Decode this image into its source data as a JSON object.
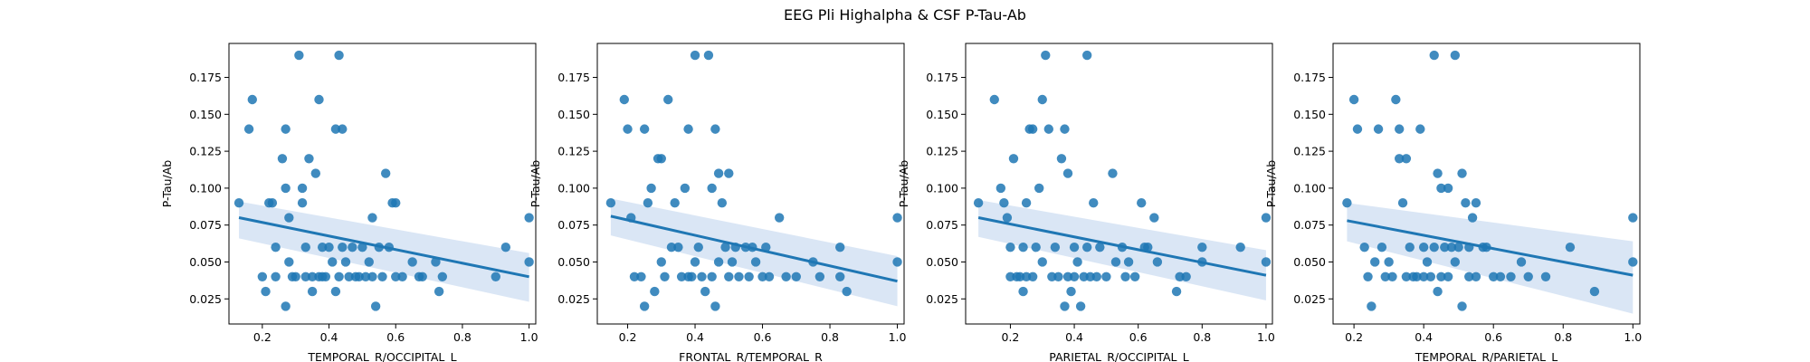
{
  "figure": {
    "suptitle": "EEG Pli Highalpha & CSF P-Tau-Ab"
  },
  "style": {
    "point_color": "#1f77b4",
    "line_color": "#1f77b4",
    "band_color": "#aec7e8"
  },
  "chart_data": [
    {
      "type": "scatter",
      "xlabel": "TEMPORAL_R/OCCIPITAL_L",
      "ylabel": "P-Tau/Ab",
      "xlim": [
        0.1,
        1.02
      ],
      "ylim": [
        0.008,
        0.198
      ],
      "xticks": [
        "0.2",
        "0.4",
        "0.6",
        "0.8",
        "1.0"
      ],
      "yticks": [
        "0.025",
        "0.050",
        "0.075",
        "0.100",
        "0.125",
        "0.150",
        "0.175"
      ],
      "regression": {
        "x": [
          0.13,
          1.0
        ],
        "y": [
          0.08,
          0.04
        ],
        "ci_lower": [
          0.066,
          0.023
        ],
        "ci_upper": [
          0.091,
          0.056
        ]
      },
      "points": [
        [
          0.13,
          0.09
        ],
        [
          0.16,
          0.14
        ],
        [
          0.17,
          0.16
        ],
        [
          0.2,
          0.04
        ],
        [
          0.21,
          0.03
        ],
        [
          0.22,
          0.09
        ],
        [
          0.23,
          0.09
        ],
        [
          0.24,
          0.06
        ],
        [
          0.24,
          0.04
        ],
        [
          0.26,
          0.12
        ],
        [
          0.27,
          0.14
        ],
        [
          0.27,
          0.02
        ],
        [
          0.27,
          0.1
        ],
        [
          0.28,
          0.08
        ],
        [
          0.28,
          0.05
        ],
        [
          0.29,
          0.04
        ],
        [
          0.3,
          0.04
        ],
        [
          0.31,
          0.19
        ],
        [
          0.32,
          0.1
        ],
        [
          0.32,
          0.09
        ],
        [
          0.33,
          0.04
        ],
        [
          0.33,
          0.06
        ],
        [
          0.34,
          0.12
        ],
        [
          0.35,
          0.04
        ],
        [
          0.35,
          0.03
        ],
        [
          0.36,
          0.11
        ],
        [
          0.37,
          0.16
        ],
        [
          0.37,
          0.04
        ],
        [
          0.38,
          0.06
        ],
        [
          0.38,
          0.04
        ],
        [
          0.39,
          0.04
        ],
        [
          0.4,
          0.06
        ],
        [
          0.41,
          0.05
        ],
        [
          0.42,
          0.14
        ],
        [
          0.42,
          0.03
        ],
        [
          0.43,
          0.19
        ],
        [
          0.43,
          0.04
        ],
        [
          0.44,
          0.14
        ],
        [
          0.44,
          0.06
        ],
        [
          0.45,
          0.05
        ],
        [
          0.46,
          0.04
        ],
        [
          0.47,
          0.06
        ],
        [
          0.48,
          0.04
        ],
        [
          0.49,
          0.04
        ],
        [
          0.5,
          0.06
        ],
        [
          0.51,
          0.04
        ],
        [
          0.52,
          0.05
        ],
        [
          0.53,
          0.08
        ],
        [
          0.53,
          0.04
        ],
        [
          0.54,
          0.02
        ],
        [
          0.55,
          0.06
        ],
        [
          0.56,
          0.04
        ],
        [
          0.57,
          0.11
        ],
        [
          0.58,
          0.06
        ],
        [
          0.59,
          0.09
        ],
        [
          0.6,
          0.09
        ],
        [
          0.6,
          0.04
        ],
        [
          0.62,
          0.04
        ],
        [
          0.65,
          0.05
        ],
        [
          0.67,
          0.04
        ],
        [
          0.68,
          0.04
        ],
        [
          0.72,
          0.05
        ],
        [
          0.73,
          0.03
        ],
        [
          0.74,
          0.04
        ],
        [
          0.9,
          0.04
        ],
        [
          0.93,
          0.06
        ],
        [
          1.0,
          0.08
        ],
        [
          1.0,
          0.05
        ]
      ]
    },
    {
      "type": "scatter",
      "xlabel": "FRONTAL_R/TEMPORAL_R",
      "ylabel": "P-Tau/Ab",
      "xlim": [
        0.11,
        1.02
      ],
      "ylim": [
        0.008,
        0.198
      ],
      "xticks": [
        "0.2",
        "0.4",
        "0.6",
        "0.8",
        "1.0"
      ],
      "yticks": [
        "0.025",
        "0.050",
        "0.075",
        "0.100",
        "0.125",
        "0.150",
        "0.175"
      ],
      "regression": {
        "x": [
          0.15,
          1.0
        ],
        "y": [
          0.081,
          0.037
        ],
        "ci_lower": [
          0.068,
          0.02
        ],
        "ci_upper": [
          0.093,
          0.054
        ]
      },
      "points": [
        [
          0.15,
          0.09
        ],
        [
          0.19,
          0.16
        ],
        [
          0.2,
          0.14
        ],
        [
          0.21,
          0.08
        ],
        [
          0.22,
          0.04
        ],
        [
          0.24,
          0.04
        ],
        [
          0.25,
          0.14
        ],
        [
          0.25,
          0.02
        ],
        [
          0.26,
          0.09
        ],
        [
          0.27,
          0.1
        ],
        [
          0.28,
          0.03
        ],
        [
          0.29,
          0.12
        ],
        [
          0.3,
          0.12
        ],
        [
          0.3,
          0.05
        ],
        [
          0.31,
          0.04
        ],
        [
          0.32,
          0.16
        ],
        [
          0.33,
          0.06
        ],
        [
          0.34,
          0.09
        ],
        [
          0.35,
          0.06
        ],
        [
          0.36,
          0.04
        ],
        [
          0.37,
          0.1
        ],
        [
          0.38,
          0.14
        ],
        [
          0.38,
          0.04
        ],
        [
          0.39,
          0.04
        ],
        [
          0.4,
          0.19
        ],
        [
          0.4,
          0.05
        ],
        [
          0.41,
          0.06
        ],
        [
          0.42,
          0.04
        ],
        [
          0.43,
          0.03
        ],
        [
          0.44,
          0.19
        ],
        [
          0.45,
          0.1
        ],
        [
          0.45,
          0.04
        ],
        [
          0.46,
          0.14
        ],
        [
          0.46,
          0.02
        ],
        [
          0.47,
          0.11
        ],
        [
          0.47,
          0.05
        ],
        [
          0.48,
          0.09
        ],
        [
          0.49,
          0.06
        ],
        [
          0.5,
          0.11
        ],
        [
          0.5,
          0.04
        ],
        [
          0.51,
          0.05
        ],
        [
          0.52,
          0.06
        ],
        [
          0.53,
          0.04
        ],
        [
          0.55,
          0.06
        ],
        [
          0.56,
          0.04
        ],
        [
          0.57,
          0.06
        ],
        [
          0.58,
          0.05
        ],
        [
          0.6,
          0.04
        ],
        [
          0.61,
          0.06
        ],
        [
          0.62,
          0.04
        ],
        [
          0.65,
          0.08
        ],
        [
          0.67,
          0.04
        ],
        [
          0.7,
          0.04
        ],
        [
          0.75,
          0.05
        ],
        [
          0.77,
          0.04
        ],
        [
          0.83,
          0.06
        ],
        [
          0.83,
          0.04
        ],
        [
          0.85,
          0.03
        ],
        [
          1.0,
          0.08
        ],
        [
          1.0,
          0.05
        ]
      ]
    },
    {
      "type": "scatter",
      "xlabel": "PARIETAL_R/OCCIPITAL_L",
      "ylabel": "P-Tau/Ab",
      "xlim": [
        0.06,
        1.02
      ],
      "ylim": [
        0.008,
        0.198
      ],
      "xticks": [
        "0.2",
        "0.4",
        "0.6",
        "0.8",
        "1.0"
      ],
      "yticks": [
        "0.025",
        "0.050",
        "0.075",
        "0.100",
        "0.125",
        "0.150",
        "0.175"
      ],
      "regression": {
        "x": [
          0.1,
          1.0
        ],
        "y": [
          0.08,
          0.041
        ],
        "ci_lower": [
          0.067,
          0.024
        ],
        "ci_upper": [
          0.092,
          0.058
        ]
      },
      "points": [
        [
          0.1,
          0.09
        ],
        [
          0.15,
          0.16
        ],
        [
          0.17,
          0.1
        ],
        [
          0.18,
          0.09
        ],
        [
          0.19,
          0.08
        ],
        [
          0.2,
          0.06
        ],
        [
          0.2,
          0.04
        ],
        [
          0.21,
          0.12
        ],
        [
          0.22,
          0.04
        ],
        [
          0.23,
          0.04
        ],
        [
          0.24,
          0.06
        ],
        [
          0.24,
          0.03
        ],
        [
          0.25,
          0.09
        ],
        [
          0.25,
          0.04
        ],
        [
          0.26,
          0.14
        ],
        [
          0.27,
          0.14
        ],
        [
          0.27,
          0.04
        ],
        [
          0.28,
          0.06
        ],
        [
          0.29,
          0.1
        ],
        [
          0.3,
          0.05
        ],
        [
          0.3,
          0.16
        ],
        [
          0.31,
          0.19
        ],
        [
          0.32,
          0.14
        ],
        [
          0.33,
          0.04
        ],
        [
          0.34,
          0.06
        ],
        [
          0.35,
          0.04
        ],
        [
          0.36,
          0.12
        ],
        [
          0.37,
          0.14
        ],
        [
          0.37,
          0.02
        ],
        [
          0.38,
          0.11
        ],
        [
          0.38,
          0.04
        ],
        [
          0.39,
          0.03
        ],
        [
          0.4,
          0.06
        ],
        [
          0.4,
          0.04
        ],
        [
          0.41,
          0.05
        ],
        [
          0.42,
          0.02
        ],
        [
          0.43,
          0.04
        ],
        [
          0.44,
          0.19
        ],
        [
          0.44,
          0.06
        ],
        [
          0.45,
          0.04
        ],
        [
          0.46,
          0.09
        ],
        [
          0.47,
          0.04
        ],
        [
          0.48,
          0.06
        ],
        [
          0.5,
          0.04
        ],
        [
          0.52,
          0.11
        ],
        [
          0.53,
          0.05
        ],
        [
          0.55,
          0.06
        ],
        [
          0.56,
          0.04
        ],
        [
          0.57,
          0.05
        ],
        [
          0.59,
          0.04
        ],
        [
          0.61,
          0.09
        ],
        [
          0.62,
          0.06
        ],
        [
          0.63,
          0.06
        ],
        [
          0.65,
          0.08
        ],
        [
          0.66,
          0.05
        ],
        [
          0.72,
          0.03
        ],
        [
          0.73,
          0.04
        ],
        [
          0.75,
          0.04
        ],
        [
          0.8,
          0.06
        ],
        [
          0.8,
          0.05
        ],
        [
          0.92,
          0.06
        ],
        [
          1.0,
          0.08
        ],
        [
          1.0,
          0.05
        ]
      ]
    },
    {
      "type": "scatter",
      "xlabel": "TEMPORAL_R/PARIETAL_L",
      "ylabel": "P-Tau/Ab",
      "xlim": [
        0.14,
        1.02
      ],
      "ylim": [
        0.008,
        0.198
      ],
      "xticks": [
        "0.2",
        "0.4",
        "0.6",
        "0.8",
        "1.0"
      ],
      "yticks": [
        "0.025",
        "0.050",
        "0.075",
        "0.100",
        "0.125",
        "0.150",
        "0.175"
      ],
      "regression": {
        "x": [
          0.18,
          1.0
        ],
        "y": [
          0.078,
          0.041
        ],
        "ci_lower": [
          0.064,
          0.015
        ],
        "ci_upper": [
          0.09,
          0.064
        ]
      },
      "points": [
        [
          0.18,
          0.09
        ],
        [
          0.2,
          0.16
        ],
        [
          0.21,
          0.14
        ],
        [
          0.23,
          0.06
        ],
        [
          0.24,
          0.04
        ],
        [
          0.25,
          0.02
        ],
        [
          0.26,
          0.05
        ],
        [
          0.27,
          0.14
        ],
        [
          0.28,
          0.06
        ],
        [
          0.29,
          0.04
        ],
        [
          0.3,
          0.05
        ],
        [
          0.31,
          0.04
        ],
        [
          0.32,
          0.16
        ],
        [
          0.33,
          0.12
        ],
        [
          0.33,
          0.14
        ],
        [
          0.34,
          0.09
        ],
        [
          0.35,
          0.12
        ],
        [
          0.35,
          0.04
        ],
        [
          0.36,
          0.06
        ],
        [
          0.37,
          0.04
        ],
        [
          0.38,
          0.04
        ],
        [
          0.39,
          0.14
        ],
        [
          0.4,
          0.04
        ],
        [
          0.4,
          0.06
        ],
        [
          0.41,
          0.05
        ],
        [
          0.42,
          0.04
        ],
        [
          0.43,
          0.19
        ],
        [
          0.43,
          0.06
        ],
        [
          0.44,
          0.11
        ],
        [
          0.44,
          0.03
        ],
        [
          0.45,
          0.1
        ],
        [
          0.45,
          0.04
        ],
        [
          0.46,
          0.06
        ],
        [
          0.47,
          0.1
        ],
        [
          0.47,
          0.04
        ],
        [
          0.48,
          0.06
        ],
        [
          0.49,
          0.19
        ],
        [
          0.49,
          0.05
        ],
        [
          0.5,
          0.06
        ],
        [
          0.51,
          0.11
        ],
        [
          0.51,
          0.02
        ],
        [
          0.52,
          0.09
        ],
        [
          0.53,
          0.06
        ],
        [
          0.53,
          0.04
        ],
        [
          0.54,
          0.08
        ],
        [
          0.55,
          0.09
        ],
        [
          0.55,
          0.04
        ],
        [
          0.57,
          0.06
        ],
        [
          0.58,
          0.06
        ],
        [
          0.6,
          0.04
        ],
        [
          0.62,
          0.04
        ],
        [
          0.65,
          0.04
        ],
        [
          0.68,
          0.05
        ],
        [
          0.7,
          0.04
        ],
        [
          0.75,
          0.04
        ],
        [
          0.82,
          0.06
        ],
        [
          0.89,
          0.03
        ],
        [
          1.0,
          0.08
        ],
        [
          1.0,
          0.05
        ]
      ]
    }
  ]
}
